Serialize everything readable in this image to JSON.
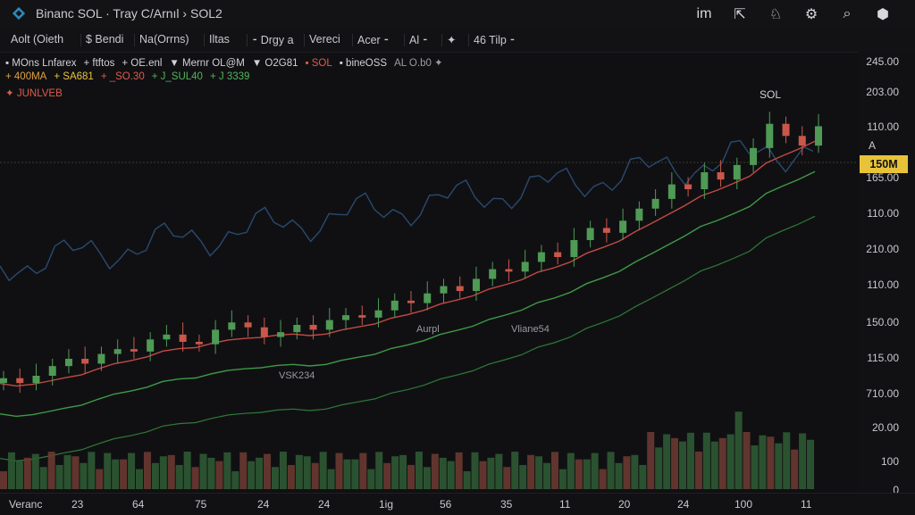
{
  "window": {
    "title": "Binanc SOL · Tray C/Arnıl › SOL2"
  },
  "header_icons": [
    {
      "name": "im-icon",
      "glyph": "im"
    },
    {
      "name": "export-icon",
      "glyph": "⇱"
    },
    {
      "name": "alert-icon",
      "glyph": "♘"
    },
    {
      "name": "gear-icon",
      "glyph": "⚙"
    },
    {
      "name": "search-icon",
      "glyph": "⌕"
    },
    {
      "name": "cube-icon",
      "glyph": "⬢"
    }
  ],
  "toolbar": {
    "items": [
      "Aolt (Oieth",
      "$ Bendi",
      "Na(Orrns)",
      "Iltas",
      "⁃ Drgy a",
      "Vereci",
      "Acer ⁃",
      "Al ⁃",
      "✦",
      "46 Tilp ⁃"
    ]
  },
  "legend": {
    "row1": [
      "▪ MOns Lnfarex",
      "+ ftftos",
      "+ OE.enl",
      "▼ Mernr OL@M",
      "▼ O2G81",
      "▪ SOL",
      "▪ bineOSS",
      "AL O.b0 ✦"
    ],
    "row2": [
      "+ 400MA",
      "+ SA681",
      "+ _SO.30",
      "+ J_SUL40",
      "+ J 3339"
    ],
    "row3": [
      "✦ JUNLVEB"
    ]
  },
  "chart": {
    "symbol_label": "SOL",
    "annotations": [
      "Aurpl",
      "Vliane54",
      "VSK234"
    ],
    "current_price": "150M",
    "marker_label": "A",
    "y_labels": [
      "245.00",
      "203.00",
      "110.00",
      "165.00",
      "110.00",
      "210.00",
      "110.00",
      "150.00",
      "115.00",
      "710.00",
      "20.00",
      "100",
      "0"
    ],
    "x_labels": [
      "Veranc",
      "23",
      "64",
      "75",
      "24",
      "24",
      "1ig",
      "56",
      "35",
      "11",
      "20",
      "24",
      "100",
      "11"
    ]
  },
  "colors": {
    "up": "#4f9a55",
    "down": "#c9584a",
    "ma_red": "#c24a43",
    "ma_green": "#3e9a46",
    "line_blue": "#2a4a6e",
    "price_tag": "#e8c33a"
  },
  "chart_data": {
    "type": "line",
    "candles_close": [
      140,
      138,
      141,
      145,
      148,
      146,
      150,
      152,
      151,
      156,
      158,
      155,
      154,
      160,
      163,
      161,
      157,
      159,
      162,
      160,
      164,
      166,
      165,
      168,
      172,
      171,
      175,
      178,
      176,
      181,
      185,
      184,
      188,
      192,
      190,
      197,
      202,
      200,
      205,
      210,
      214,
      220,
      218,
      225,
      222,
      228,
      235,
      245,
      240,
      236,
      244
    ]
  }
}
